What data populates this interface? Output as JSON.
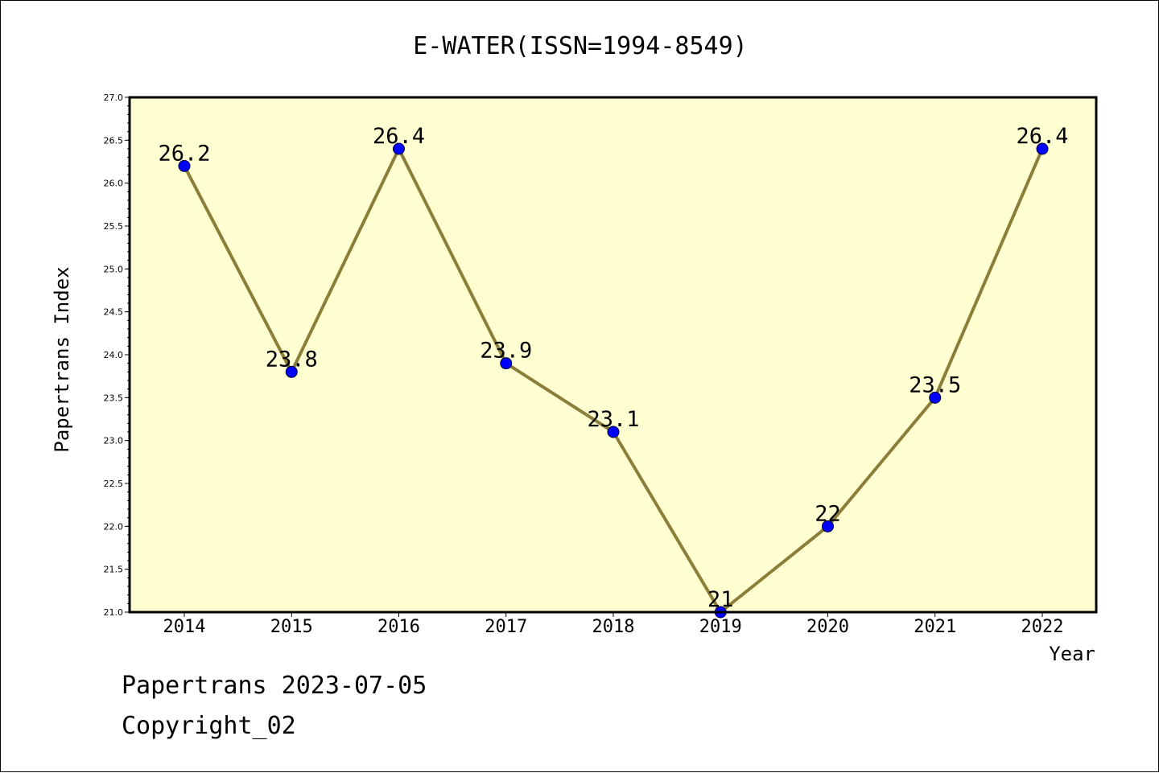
{
  "chart_data": {
    "type": "line",
    "title": "E-WATER(ISSN=1994-8549)",
    "xlabel": "Year",
    "ylabel": "Papertrans Index",
    "categories": [
      "2014",
      "2015",
      "2016",
      "2017",
      "2018",
      "2019",
      "2020",
      "2021",
      "2022"
    ],
    "values": [
      26.2,
      23.8,
      26.4,
      23.9,
      23.1,
      21,
      22,
      23.5,
      26.4
    ],
    "data_labels": [
      "26.2",
      "23.8",
      "26.4",
      "23.9",
      "23.1",
      "21",
      "22",
      "23.5",
      "26.4"
    ],
    "ylim": [
      21.0,
      27.0
    ],
    "yticks": [
      "21.0",
      "21.5",
      "22.0",
      "22.5",
      "23.0",
      "23.5",
      "24.0",
      "24.5",
      "25.0",
      "25.5",
      "26.0",
      "26.5",
      "27.0"
    ],
    "grid": false,
    "colors": {
      "plot_background": "#ffffd2",
      "line": "#8b7d3a",
      "marker": "#0000ff"
    }
  },
  "footer": {
    "date_line": "Papertrans 2023-07-05",
    "copyright": "Copyright_02"
  }
}
